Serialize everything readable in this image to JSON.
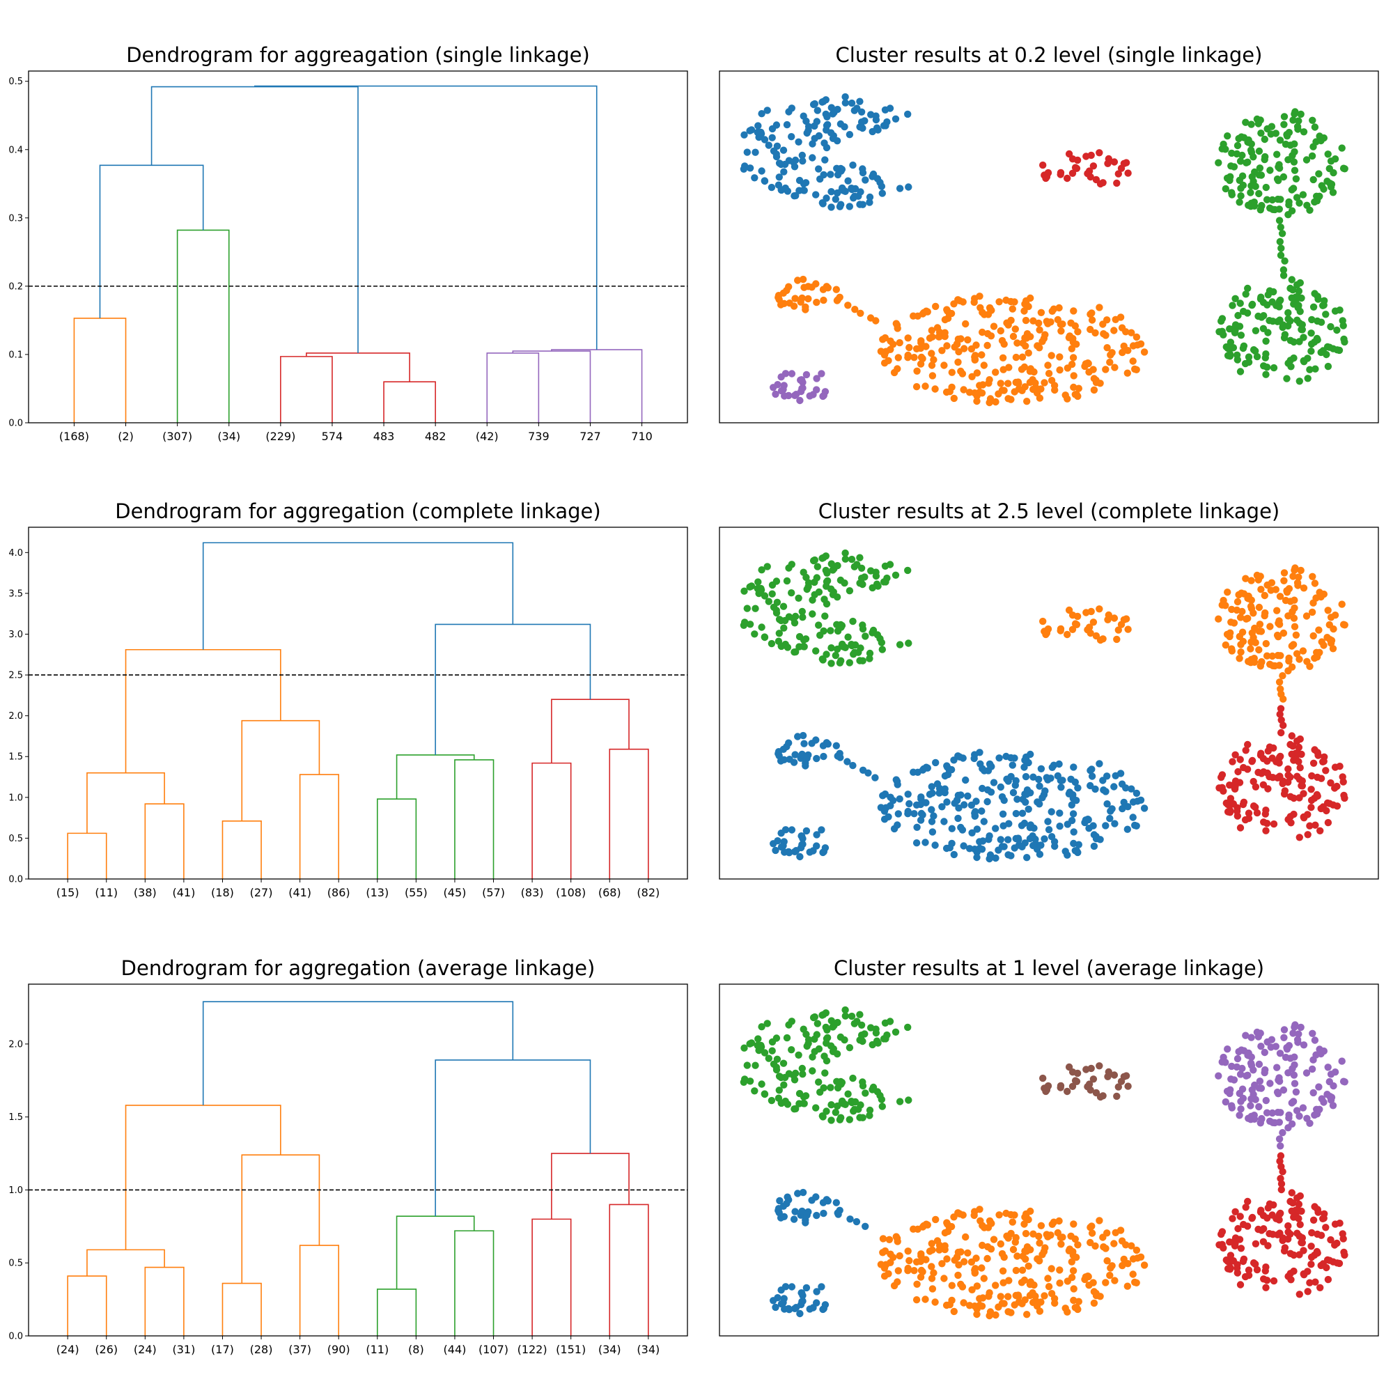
{
  "chart_data": [
    {
      "type": "dendrogram",
      "title": "Dendrogram for aggreagation (single linkage)",
      "ylim": [
        0,
        0.515
      ],
      "yticks": [
        "0.0",
        "0.1",
        "0.2",
        "0.3",
        "0.4",
        "0.5"
      ],
      "ytick_values": [
        0,
        0.1,
        0.2,
        0.3,
        0.4,
        0.5
      ],
      "threshold": 0.2,
      "leaves": [
        "(168)",
        "(2)",
        "(307)",
        "(34)",
        "(229)",
        "574",
        "483",
        "482",
        "(42)",
        "739",
        "727",
        "710"
      ],
      "links": [
        {
          "a": [
            0,
            0
          ],
          "b": [
            1,
            0
          ],
          "h": 0.153,
          "color": "#ff7f0e"
        },
        {
          "a": [
            2,
            0
          ],
          "b": [
            3,
            0
          ],
          "h": 0.282,
          "color": "#2ca02c"
        },
        {
          "a": [
            0.5,
            0.153
          ],
          "b": [
            2.5,
            0.282
          ],
          "h": 0.377,
          "color": "#1f77b4"
        },
        {
          "a": [
            4,
            0
          ],
          "b": [
            5,
            0
          ],
          "h": 0.097,
          "color": "#d62728"
        },
        {
          "a": [
            6,
            0
          ],
          "b": [
            7,
            0
          ],
          "h": 0.06,
          "color": "#d62728"
        },
        {
          "a": [
            4.5,
            0.097
          ],
          "b": [
            6.5,
            0.06
          ],
          "h": 0.102,
          "color": "#d62728"
        },
        {
          "a": [
            1.5,
            0.377
          ],
          "b": [
            5.5,
            0.102
          ],
          "h": 0.492,
          "color": "#1f77b4"
        },
        {
          "a": [
            8,
            0
          ],
          "b": [
            9,
            0
          ],
          "h": 0.102,
          "color": "#9467bd"
        },
        {
          "a": [
            8.5,
            0.102
          ],
          "b": [
            10,
            0
          ],
          "h": 0.105,
          "color": "#9467bd"
        },
        {
          "a": [
            9.25,
            0.105
          ],
          "b": [
            11,
            0
          ],
          "h": 0.107,
          "color": "#9467bd"
        },
        {
          "a": [
            3.5,
            0.492
          ],
          "b": [
            10.125,
            0.107
          ],
          "h": 0.493,
          "color": "#1f77b4"
        }
      ]
    },
    {
      "type": "scatter",
      "title": "Cluster results at 0.2 level (single linkage)",
      "xlim": [
        2.5,
        38.5
      ],
      "ylim": [
        1.2,
        30.8
      ],
      "clusters": [
        {
          "shape": "v",
          "cx": 8.8,
          "cy": 24,
          "rx": 5.5,
          "ry": 4.3,
          "n": 170,
          "color": "#1f77b4"
        },
        {
          "shape": "ellipse",
          "cx": 22.6,
          "cy": 22.5,
          "rx": 3.0,
          "ry": 1.5,
          "n": 34,
          "color": "#d62728"
        },
        {
          "shape": "ellipse",
          "cx": 33.2,
          "cy": 23.0,
          "rx": 3.5,
          "ry": 4.5,
          "n": 150,
          "color": "#2ca02c"
        },
        {
          "shape": "ellipse",
          "cx": 33.3,
          "cy": 8.8,
          "rx": 3.5,
          "ry": 4.5,
          "n": 150,
          "color": "#2ca02c"
        },
        {
          "shape": "bridge",
          "x0": 33.3,
          "y0": 13.3,
          "x1": 33.2,
          "y1": 18.5,
          "n": 9,
          "color": "#2ca02c"
        },
        {
          "shape": "ellipse",
          "cx": 18.5,
          "cy": 7.4,
          "rx": 7.4,
          "ry": 4.6,
          "n": 280,
          "color": "#ff7f0e"
        },
        {
          "shape": "ellipse",
          "cx": 7.3,
          "cy": 12.0,
          "rx": 1.8,
          "ry": 1.5,
          "n": 30,
          "color": "#ff7f0e"
        },
        {
          "shape": "bridge",
          "x0": 8.8,
          "y0": 11.6,
          "x1": 11.3,
          "y1": 9.6,
          "n": 6,
          "color": "#ff7f0e"
        },
        {
          "shape": "ellipse",
          "cx": 7.0,
          "cy": 4.3,
          "rx": 1.8,
          "ry": 1.3,
          "n": 30,
          "color": "#9467bd"
        }
      ]
    },
    {
      "type": "dendrogram",
      "title": "Dendrogram for aggregation (complete linkage)",
      "ylim": [
        0,
        4.31
      ],
      "yticks": [
        "0.0",
        "0.5",
        "1.0",
        "1.5",
        "2.0",
        "2.5",
        "3.0",
        "3.5",
        "4.0"
      ],
      "ytick_values": [
        0,
        0.5,
        1.0,
        1.5,
        2.0,
        2.5,
        3.0,
        3.5,
        4.0
      ],
      "threshold": 2.5,
      "leaves": [
        "(15)",
        "(11)",
        "(38)",
        "(41)",
        "(18)",
        "(27)",
        "(41)",
        "(86)",
        "(13)",
        "(55)",
        "(45)",
        "(57)",
        "(83)",
        "(108)",
        "(68)",
        "(82)"
      ],
      "links": [
        {
          "a": [
            0,
            0
          ],
          "b": [
            1,
            0
          ],
          "h": 0.56,
          "color": "#ff7f0e"
        },
        {
          "a": [
            2,
            0
          ],
          "b": [
            3,
            0
          ],
          "h": 0.92,
          "color": "#ff7f0e"
        },
        {
          "a": [
            0.5,
            0.56
          ],
          "b": [
            2.5,
            0.92
          ],
          "h": 1.3,
          "color": "#ff7f0e"
        },
        {
          "a": [
            4,
            0
          ],
          "b": [
            5,
            0
          ],
          "h": 0.71,
          "color": "#ff7f0e"
        },
        {
          "a": [
            6,
            0
          ],
          "b": [
            7,
            0
          ],
          "h": 1.28,
          "color": "#ff7f0e"
        },
        {
          "a": [
            4.5,
            0.71
          ],
          "b": [
            6.5,
            1.28
          ],
          "h": 1.94,
          "color": "#ff7f0e"
        },
        {
          "a": [
            1.5,
            1.3
          ],
          "b": [
            5.5,
            1.94
          ],
          "h": 2.81,
          "color": "#ff7f0e"
        },
        {
          "a": [
            8,
            0
          ],
          "b": [
            9,
            0
          ],
          "h": 0.98,
          "color": "#2ca02c"
        },
        {
          "a": [
            10,
            0
          ],
          "b": [
            11,
            0
          ],
          "h": 1.46,
          "color": "#2ca02c"
        },
        {
          "a": [
            8.5,
            0.98
          ],
          "b": [
            10.5,
            1.46
          ],
          "h": 1.52,
          "color": "#2ca02c"
        },
        {
          "a": [
            12,
            0
          ],
          "b": [
            13,
            0
          ],
          "h": 1.42,
          "color": "#d62728"
        },
        {
          "a": [
            14,
            0
          ],
          "b": [
            15,
            0
          ],
          "h": 1.59,
          "color": "#d62728"
        },
        {
          "a": [
            12.5,
            1.42
          ],
          "b": [
            14.5,
            1.59
          ],
          "h": 2.2,
          "color": "#d62728"
        },
        {
          "a": [
            9.5,
            1.52
          ],
          "b": [
            13.5,
            2.2
          ],
          "h": 3.12,
          "color": "#1f77b4"
        },
        {
          "a": [
            3.5,
            2.81
          ],
          "b": [
            11.5,
            3.12
          ],
          "h": 4.12,
          "color": "#1f77b4"
        }
      ]
    },
    {
      "type": "scatter",
      "title": "Cluster results at 2.5 level (complete linkage)",
      "xlim": [
        2.5,
        38.5
      ],
      "ylim": [
        1.2,
        30.8
      ],
      "clusters": [
        {
          "shape": "v",
          "cx": 8.8,
          "cy": 24,
          "rx": 5.5,
          "ry": 4.3,
          "n": 170,
          "color": "#2ca02c"
        },
        {
          "shape": "ellipse",
          "cx": 22.6,
          "cy": 22.5,
          "rx": 3.0,
          "ry": 1.5,
          "n": 34,
          "color": "#ff7f0e"
        },
        {
          "shape": "ellipse",
          "cx": 33.2,
          "cy": 23.0,
          "rx": 3.5,
          "ry": 4.5,
          "n": 150,
          "color": "#ff7f0e"
        },
        {
          "shape": "bridge",
          "x0": 33.2,
          "y0": 18.5,
          "x1": 33.2,
          "y1": 16.0,
          "n": 5,
          "color": "#ff7f0e"
        },
        {
          "shape": "ellipse",
          "cx": 33.3,
          "cy": 8.8,
          "rx": 3.5,
          "ry": 4.5,
          "n": 150,
          "color": "#d62728"
        },
        {
          "shape": "bridge",
          "x0": 33.3,
          "y0": 13.3,
          "x1": 33.2,
          "y1": 15.8,
          "n": 5,
          "color": "#d62728"
        },
        {
          "shape": "ellipse",
          "cx": 18.5,
          "cy": 7.4,
          "rx": 7.4,
          "ry": 4.6,
          "n": 280,
          "color": "#1f77b4"
        },
        {
          "shape": "ellipse",
          "cx": 7.3,
          "cy": 12.0,
          "rx": 1.8,
          "ry": 1.5,
          "n": 30,
          "color": "#1f77b4"
        },
        {
          "shape": "bridge",
          "x0": 8.8,
          "y0": 11.6,
          "x1": 11.3,
          "y1": 9.6,
          "n": 6,
          "color": "#1f77b4"
        },
        {
          "shape": "ellipse",
          "cx": 7.0,
          "cy": 4.3,
          "rx": 1.8,
          "ry": 1.3,
          "n": 30,
          "color": "#1f77b4"
        }
      ]
    },
    {
      "type": "dendrogram",
      "title": "Dendrogram for aggregation (average linkage)",
      "ylim": [
        0,
        2.41
      ],
      "yticks": [
        "0.0",
        "0.5",
        "1.0",
        "1.5",
        "2.0"
      ],
      "ytick_values": [
        0,
        0.5,
        1.0,
        1.5,
        2.0
      ],
      "threshold": 1.0,
      "leaves": [
        "(24)",
        "(26)",
        "(24)",
        "(31)",
        "(17)",
        "(28)",
        "(37)",
        "(90)",
        "(11)",
        "(8)",
        "(44)",
        "(107)",
        "(122)",
        "(151)",
        "(34)",
        "(34)"
      ],
      "links": [
        {
          "a": [
            0,
            0
          ],
          "b": [
            1,
            0
          ],
          "h": 0.41,
          "color": "#ff7f0e"
        },
        {
          "a": [
            2,
            0
          ],
          "b": [
            3,
            0
          ],
          "h": 0.47,
          "color": "#ff7f0e"
        },
        {
          "a": [
            0.5,
            0.41
          ],
          "b": [
            2.5,
            0.47
          ],
          "h": 0.59,
          "color": "#ff7f0e"
        },
        {
          "a": [
            4,
            0
          ],
          "b": [
            5,
            0
          ],
          "h": 0.36,
          "color": "#ff7f0e"
        },
        {
          "a": [
            6,
            0
          ],
          "b": [
            7,
            0
          ],
          "h": 0.62,
          "color": "#ff7f0e"
        },
        {
          "a": [
            4.5,
            0.36
          ],
          "b": [
            6.5,
            0.62
          ],
          "h": 1.24,
          "color": "#ff7f0e"
        },
        {
          "a": [
            1.5,
            0.59
          ],
          "b": [
            5.5,
            1.24
          ],
          "h": 1.58,
          "color": "#ff7f0e"
        },
        {
          "a": [
            8,
            0
          ],
          "b": [
            9,
            0
          ],
          "h": 0.32,
          "color": "#2ca02c"
        },
        {
          "a": [
            10,
            0
          ],
          "b": [
            11,
            0
          ],
          "h": 0.72,
          "color": "#2ca02c"
        },
        {
          "a": [
            8.5,
            0.32
          ],
          "b": [
            10.5,
            0.72
          ],
          "h": 0.82,
          "color": "#2ca02c"
        },
        {
          "a": [
            12,
            0
          ],
          "b": [
            13,
            0
          ],
          "h": 0.8,
          "color": "#d62728"
        },
        {
          "a": [
            14,
            0
          ],
          "b": [
            15,
            0
          ],
          "h": 0.9,
          "color": "#d62728"
        },
        {
          "a": [
            12.5,
            0.8
          ],
          "b": [
            14.5,
            0.9
          ],
          "h": 1.25,
          "color": "#d62728"
        },
        {
          "a": [
            9.5,
            0.82
          ],
          "b": [
            13.5,
            1.25
          ],
          "h": 1.89,
          "color": "#1f77b4"
        },
        {
          "a": [
            3.5,
            1.58
          ],
          "b": [
            11.5,
            1.89
          ],
          "h": 2.29,
          "color": "#1f77b4"
        }
      ]
    },
    {
      "type": "scatter",
      "title": "Cluster results at 1 level (average linkage)",
      "xlim": [
        2.5,
        38.5
      ],
      "ylim": [
        1.2,
        30.8
      ],
      "clusters": [
        {
          "shape": "v",
          "cx": 8.8,
          "cy": 24,
          "rx": 5.5,
          "ry": 4.3,
          "n": 170,
          "color": "#2ca02c"
        },
        {
          "shape": "ellipse",
          "cx": 22.6,
          "cy": 22.5,
          "rx": 3.0,
          "ry": 1.5,
          "n": 34,
          "color": "#8c564b"
        },
        {
          "shape": "ellipse",
          "cx": 33.2,
          "cy": 23.0,
          "rx": 3.5,
          "ry": 4.5,
          "n": 150,
          "color": "#9467bd"
        },
        {
          "shape": "bridge",
          "x0": 33.2,
          "y0": 18.5,
          "x1": 33.2,
          "y1": 17.0,
          "n": 3,
          "color": "#9467bd"
        },
        {
          "shape": "ellipse",
          "cx": 33.3,
          "cy": 8.8,
          "rx": 3.5,
          "ry": 4.5,
          "n": 150,
          "color": "#d62728"
        },
        {
          "shape": "bridge",
          "x0": 33.3,
          "y0": 13.3,
          "x1": 33.2,
          "y1": 16.6,
          "n": 7,
          "color": "#d62728"
        },
        {
          "shape": "ellipse",
          "cx": 18.5,
          "cy": 7.4,
          "rx": 7.4,
          "ry": 4.6,
          "n": 280,
          "color": "#ff7f0e"
        },
        {
          "shape": "bridge",
          "x0": 11.4,
          "y0": 9.5,
          "x1": 11.9,
          "y1": 9.2,
          "n": 2,
          "color": "#ff7f0e"
        },
        {
          "shape": "ellipse",
          "cx": 7.3,
          "cy": 12.0,
          "rx": 1.8,
          "ry": 1.5,
          "n": 30,
          "color": "#1f77b4"
        },
        {
          "shape": "bridge",
          "x0": 8.8,
          "y0": 11.6,
          "x1": 10.8,
          "y1": 10.3,
          "n": 4,
          "color": "#1f77b4"
        },
        {
          "shape": "ellipse",
          "cx": 7.0,
          "cy": 4.3,
          "rx": 1.8,
          "ry": 1.3,
          "n": 30,
          "color": "#1f77b4"
        }
      ]
    }
  ]
}
